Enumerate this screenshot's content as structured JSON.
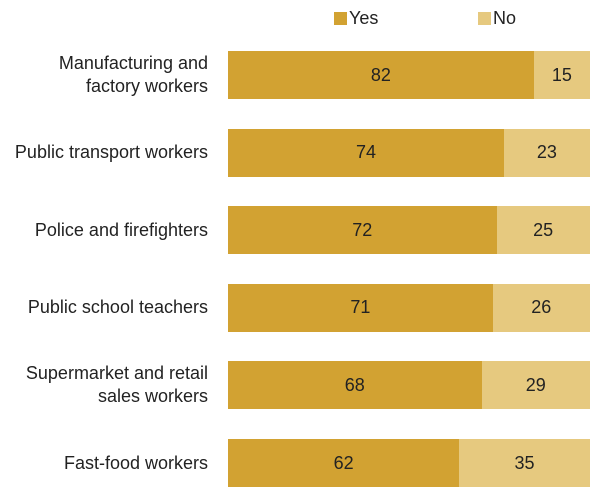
{
  "chart_data": {
    "type": "stacked-bar-horizontal",
    "categories": [
      "Manufacturing and factory workers",
      "Public transport workers",
      "Police and firefighters",
      "Public school teachers",
      "Supermarket and retail sales workers",
      "Fast-food workers"
    ],
    "series": [
      {
        "name": "Yes",
        "color": "#d2a232",
        "values": [
          82,
          74,
          72,
          71,
          68,
          62
        ]
      },
      {
        "name": "No",
        "color": "#e6c97f",
        "values": [
          15,
          23,
          25,
          26,
          29,
          35
        ]
      }
    ]
  }
}
